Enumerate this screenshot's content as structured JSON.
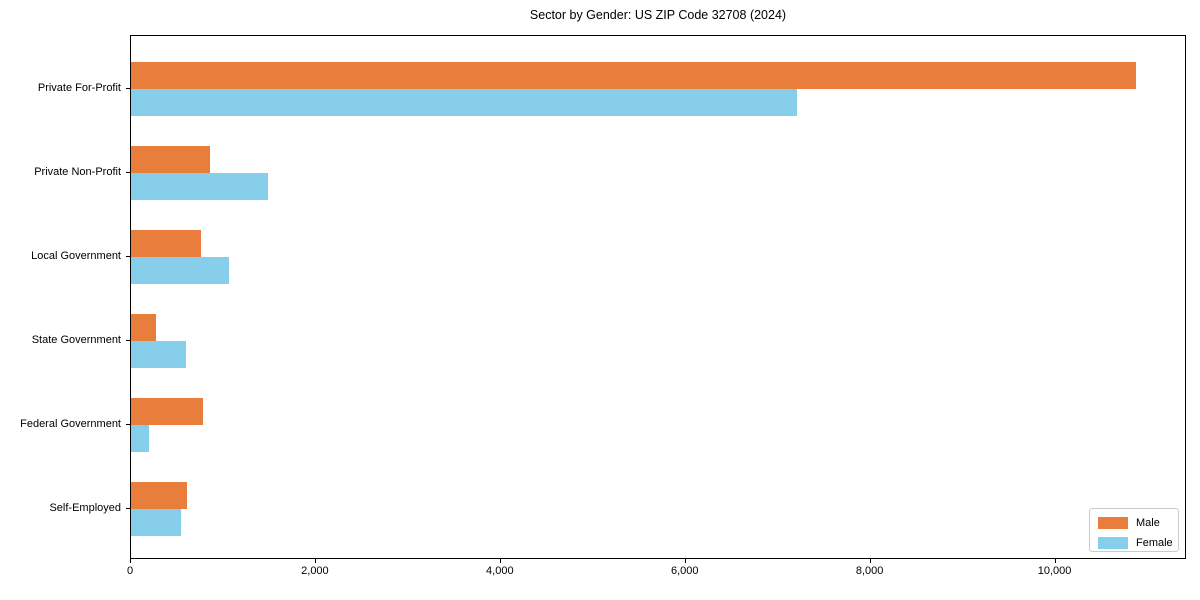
{
  "chart_data": {
    "type": "bar",
    "orientation": "horizontal",
    "title": "Sector by Gender: US ZIP Code 32708 (2024)",
    "categories": [
      "Private For-Profit",
      "Private Non-Profit",
      "Local Government",
      "State Government",
      "Federal Government",
      "Self-Employed"
    ],
    "series": [
      {
        "name": "Male",
        "color": "#e87d3c",
        "values": [
          10870,
          855,
          760,
          275,
          775,
          610
        ]
      },
      {
        "name": "Female",
        "color": "#87ceeb",
        "values": [
          7200,
          1480,
          1055,
          595,
          200,
          540
        ]
      }
    ],
    "xlabel": "",
    "ylabel": "",
    "xlim": [
      0,
      11400
    ],
    "xticks": [
      0,
      2000,
      4000,
      6000,
      8000,
      10000
    ],
    "xtick_labels": [
      "0",
      "2,000",
      "4,000",
      "6,000",
      "8,000",
      "10,000"
    ],
    "grid": false,
    "legend_position": "lower-right",
    "frame_color": "#000000",
    "legend_border_color": "#cccccc"
  }
}
